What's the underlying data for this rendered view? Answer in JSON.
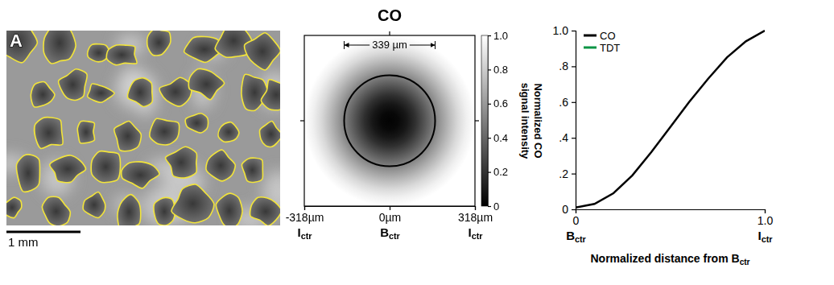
{
  "chart_data": [
    {
      "type": "image",
      "panel_label": "A",
      "scale_bar_label": "1 mm"
    },
    {
      "type": "heatmap",
      "title": "CO",
      "xlim": [
        -318,
        318
      ],
      "ylim": [
        -318,
        318
      ],
      "xticks": [
        {
          "value": -318,
          "label": "-318µm"
        },
        {
          "value": 0,
          "label": "0µm"
        },
        {
          "value": 318,
          "label": "318µm"
        }
      ],
      "xtick_sublabels": [
        {
          "text": "I",
          "subscript": "ctr"
        },
        {
          "text": "B",
          "subscript": "ctr"
        },
        {
          "text": "I",
          "subscript": "ctr"
        }
      ],
      "yticks": [
        0
      ],
      "tick_labels": "x",
      "annotation": {
        "value": 339,
        "label": "339 µm"
      },
      "radial_profile": {
        "xlim": [
          0,
          1
        ],
        "x": [
          0,
          0.1,
          0.2,
          0.3,
          0.4,
          0.5,
          0.6,
          0.7,
          0.8,
          0.9,
          1.0
        ],
        "values": [
          0.01,
          0.03,
          0.09,
          0.19,
          0.32,
          0.46,
          0.6,
          0.73,
          0.85,
          0.94,
          1.0
        ]
      },
      "colorbar": {
        "range": [
          0,
          1
        ],
        "ticks": [
          0,
          0.2,
          0.4,
          0.6,
          0.8,
          {
            "value": 1,
            "label": "1.0"
          }
        ],
        "title": [
          "Normalized CO",
          "signal intensity"
        ]
      }
    },
    {
      "type": "line",
      "xlim": [
        0,
        1
      ],
      "ylim": [
        0,
        1
      ],
      "xticks": [
        0,
        {
          "value": 1,
          "label": "1.0"
        }
      ],
      "xtick_sublabels": [
        {
          "text": "B",
          "subscript": "ctr"
        },
        {
          "text": "I",
          "subscript": "ctr"
        }
      ],
      "yticks": [
        0,
        {
          "value": 0.2,
          "label": ".2"
        },
        {
          "value": 0.4,
          "label": ".4"
        },
        {
          "value": 0.6,
          "label": ".6"
        },
        {
          "value": 0.8,
          "label": ".8"
        },
        {
          "value": 1,
          "label": "1.0"
        }
      ],
      "x_label": {
        "text": "Normalized distance from B",
        "subscript": "ctr"
      },
      "x": [
        0,
        0.1,
        0.2,
        0.3,
        0.4,
        0.5,
        0.6,
        0.7,
        0.8,
        0.9,
        1.0
      ],
      "series": [
        {
          "name": "CO",
          "color": "#000000",
          "values": [
            0.01,
            0.03,
            0.09,
            0.19,
            0.32,
            0.46,
            0.6,
            0.73,
            0.85,
            0.94,
            1.0
          ]
        },
        {
          "name": "TDT",
          "color": "#0b9444",
          "values": [
            null,
            null,
            null,
            null,
            null,
            null,
            null,
            null,
            null,
            null,
            null
          ]
        }
      ],
      "legend": "top-left"
    }
  ]
}
